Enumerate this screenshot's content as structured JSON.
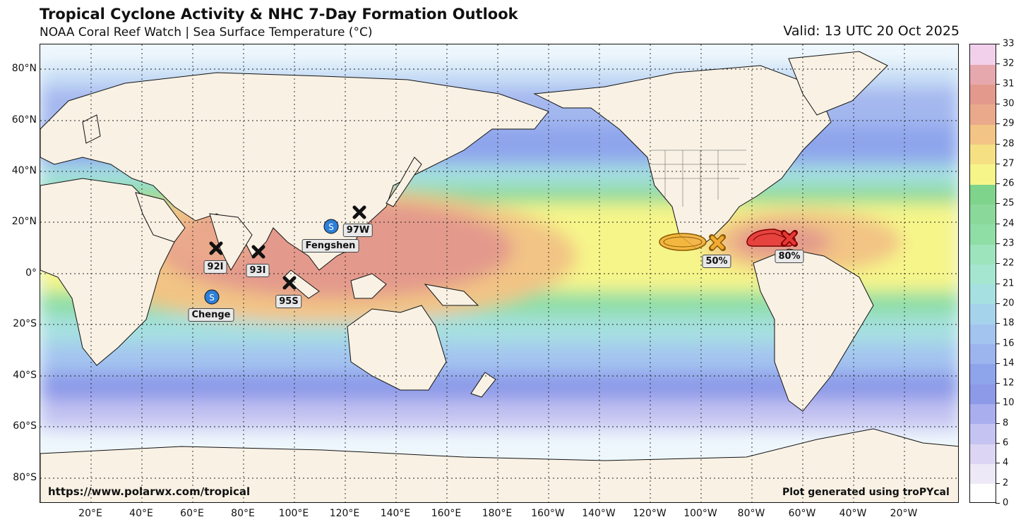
{
  "header": {
    "title": "Tropical Cyclone Activity & NHC 7-Day Formation Outlook",
    "subtitle": "NOAA Coral Reef Watch | Sea Surface Temperature (°C)",
    "valid": "Valid: 13 UTC 20 Oct 2025"
  },
  "map": {
    "lat_labels": [
      "80°N",
      "60°N",
      "40°N",
      "20°N",
      "0°",
      "20°S",
      "40°S",
      "60°S",
      "80°S"
    ],
    "lon_labels": [
      "20°E",
      "40°E",
      "60°E",
      "80°E",
      "100°E",
      "120°E",
      "140°E",
      "160°E",
      "180°E",
      "160°W",
      "140°W",
      "120°W",
      "100°W",
      "80°W",
      "60°W",
      "40°W",
      "20°W"
    ],
    "colors": {
      "land": "#f8f1e4",
      "ocean_cold": "#eef7fc",
      "warm_pool": "#e39a8c",
      "outlook_low": "#f2ab32",
      "outlook_high": "#e53935"
    }
  },
  "storms": {
    "invests": [
      {
        "id": "92I",
        "icon": "x-marker-icon"
      },
      {
        "id": "93I",
        "icon": "x-marker-icon"
      },
      {
        "id": "95S",
        "icon": "x-marker-icon"
      },
      {
        "id": "97W",
        "icon": "x-marker-icon"
      }
    ],
    "named": [
      {
        "name": "Fengshen",
        "icon": "storm-s-icon",
        "symbol": "S"
      },
      {
        "name": "Chenge",
        "icon": "storm-s-icon",
        "symbol": "S"
      }
    ]
  },
  "outlooks": [
    {
      "probability": "50%",
      "color": "#f2ab32"
    },
    {
      "probability": "80%",
      "color": "#e53935"
    }
  ],
  "colorbar": {
    "labels": [
      "0",
      "2",
      "4",
      "6",
      "8",
      "10",
      "12",
      "14",
      "16",
      "18",
      "20",
      "21",
      "22",
      "23",
      "24",
      "25",
      "26",
      "27",
      "28",
      "29",
      "30",
      "31",
      "32",
      "33"
    ],
    "colors": [
      "#ffffff",
      "#ede9f7",
      "#dcd6f4",
      "#c4c3f1",
      "#a9aeee",
      "#8c9ae8",
      "#8ea5ec",
      "#9cb5ef",
      "#a4c4f0",
      "#a6d3ec",
      "#a6e0e0",
      "#a4e6d0",
      "#9de4bc",
      "#8edea6",
      "#8bd99a",
      "#7fd48b",
      "#f6f58a",
      "#f5e184",
      "#f2c485",
      "#eba98c",
      "#e39a8c",
      "#e7a8ad",
      "#f2d0ec"
    ]
  },
  "footer": {
    "url": "https://www.polarwx.com/tropical",
    "credit": "Plot generated using troPYcal"
  }
}
